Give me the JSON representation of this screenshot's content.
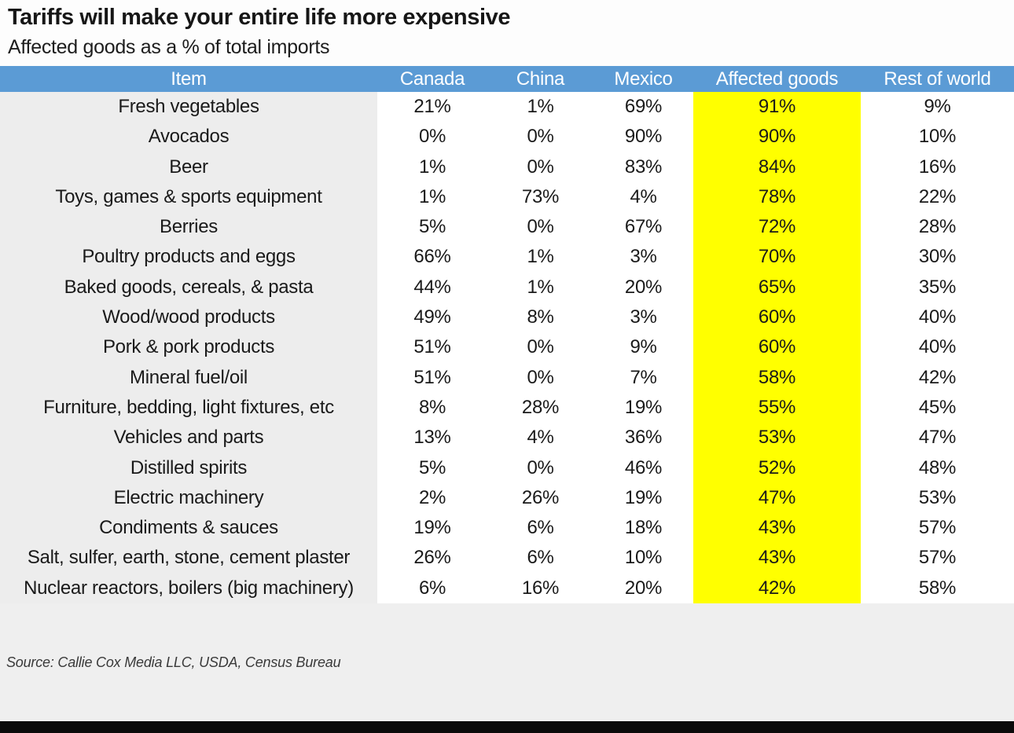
{
  "title": "Tariffs will make your entire life more expensive",
  "subtitle": "Affected goods as a % of total imports",
  "source": "Source: Callie Cox Media LLC, USDA, Census Bureau",
  "colors": {
    "header_bg": "#5b9bd5",
    "header_text": "#ffffff",
    "affected_highlight": "#ffff00",
    "item_column_bg": "#ededed",
    "footer_bg": "#efefef",
    "bottom_bar": "#0a0a0a",
    "text": "#1a1a1a"
  },
  "chart_data": {
    "type": "table",
    "title": "Tariffs will make your entire life more expensive",
    "subtitle": "Affected goods as a % of total imports",
    "columns": [
      "Item",
      "Canada",
      "China",
      "Mexico",
      "Affected goods",
      "Rest of world"
    ],
    "highlighted_column": "Affected goods",
    "rows": [
      {
        "item": "Fresh vegetables",
        "values": [
          "21%",
          "1%",
          "69%",
          "91%",
          "9%"
        ]
      },
      {
        "item": "Avocados",
        "values": [
          "0%",
          "0%",
          "90%",
          "90%",
          "10%"
        ]
      },
      {
        "item": "Beer",
        "values": [
          "1%",
          "0%",
          "83%",
          "84%",
          "16%"
        ]
      },
      {
        "item": "Toys, games & sports equipment",
        "values": [
          "1%",
          "73%",
          "4%",
          "78%",
          "22%"
        ]
      },
      {
        "item": "Berries",
        "values": [
          "5%",
          "0%",
          "67%",
          "72%",
          "28%"
        ]
      },
      {
        "item": "Poultry products and eggs",
        "values": [
          "66%",
          "1%",
          "3%",
          "70%",
          "30%"
        ]
      },
      {
        "item": "Baked goods, cereals, & pasta",
        "values": [
          "44%",
          "1%",
          "20%",
          "65%",
          "35%"
        ]
      },
      {
        "item": "Wood/wood products",
        "values": [
          "49%",
          "8%",
          "3%",
          "60%",
          "40%"
        ]
      },
      {
        "item": "Pork & pork products",
        "values": [
          "51%",
          "0%",
          "9%",
          "60%",
          "40%"
        ]
      },
      {
        "item": "Mineral fuel/oil",
        "values": [
          "51%",
          "0%",
          "7%",
          "58%",
          "42%"
        ]
      },
      {
        "item": "Furniture, bedding, light fixtures, etc",
        "values": [
          "8%",
          "28%",
          "19%",
          "55%",
          "45%"
        ]
      },
      {
        "item": "Vehicles and parts",
        "values": [
          "13%",
          "4%",
          "36%",
          "53%",
          "47%"
        ]
      },
      {
        "item": "Distilled spirits",
        "values": [
          "5%",
          "0%",
          "46%",
          "52%",
          "48%"
        ]
      },
      {
        "item": "Electric machinery",
        "values": [
          "2%",
          "26%",
          "19%",
          "47%",
          "53%"
        ]
      },
      {
        "item": "Condiments & sauces",
        "values": [
          "19%",
          "6%",
          "18%",
          "43%",
          "57%"
        ]
      },
      {
        "item": "Salt, sulfer, earth, stone, cement plaster",
        "values": [
          "26%",
          "6%",
          "10%",
          "43%",
          "57%"
        ]
      },
      {
        "item": "Nuclear reactors, boilers (big machinery)",
        "values": [
          "6%",
          "16%",
          "20%",
          "42%",
          "58%"
        ]
      }
    ]
  }
}
